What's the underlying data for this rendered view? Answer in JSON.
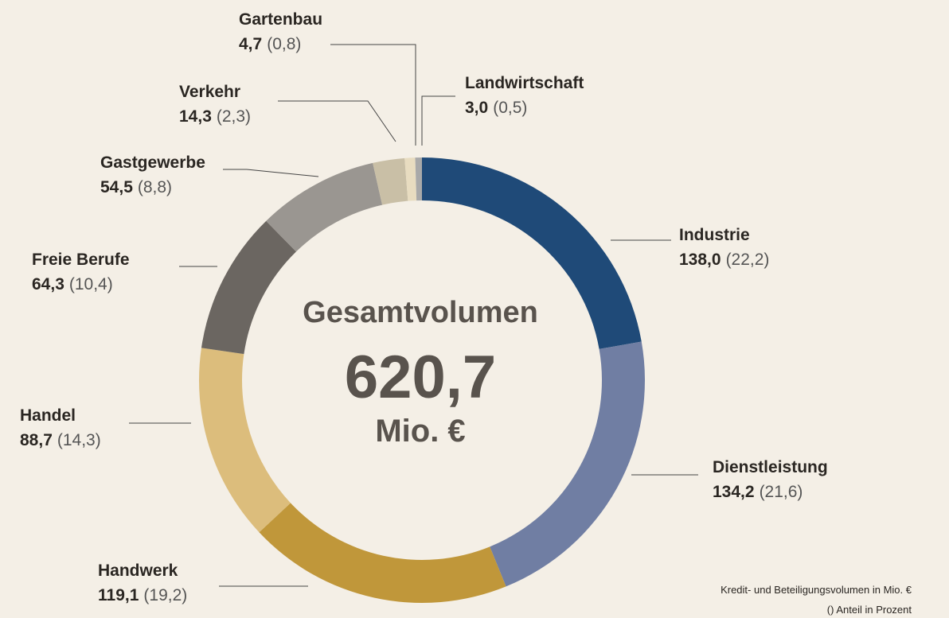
{
  "chart_data": {
    "type": "donut",
    "center_title": "Gesamtvolumen",
    "total": 620.7,
    "total_label": "620,7",
    "total_unit": "Mio. €",
    "categories": [
      "Industrie",
      "Dienstleistung",
      "Handwerk",
      "Handel",
      "Freie Berufe",
      "Gastgewerbe",
      "Verkehr",
      "Gartenbau",
      "Landwirtschaft"
    ],
    "values": [
      138.0,
      134.2,
      119.1,
      88.7,
      64.3,
      54.5,
      14.3,
      4.7,
      3.0
    ],
    "value_labels": [
      "138,0",
      "134,2",
      "119,1",
      "88,7",
      "64,3",
      "54,5",
      "14,3",
      "4,7",
      "3,0"
    ],
    "shares": [
      22.2,
      21.6,
      19.2,
      14.3,
      10.4,
      8.8,
      2.3,
      0.8,
      0.5
    ],
    "share_labels": [
      "(22,2)",
      "(21,6)",
      "(19,2)",
      "(14,3)",
      "(10,4)",
      "(8,8)",
      "(2,3)",
      "(0,8)",
      "(0,5)"
    ],
    "colors": [
      "#1f4a78",
      "#707ea3",
      "#c0973a",
      "#dcbd7c",
      "#6b6661",
      "#9a9691",
      "#c9bfa6",
      "#e8dcc0",
      "#a9a9a9"
    ],
    "notes": [
      "Kredit- und Beteiligungsvolumen in Mio. €",
      "() Anteil in Prozent"
    ]
  }
}
